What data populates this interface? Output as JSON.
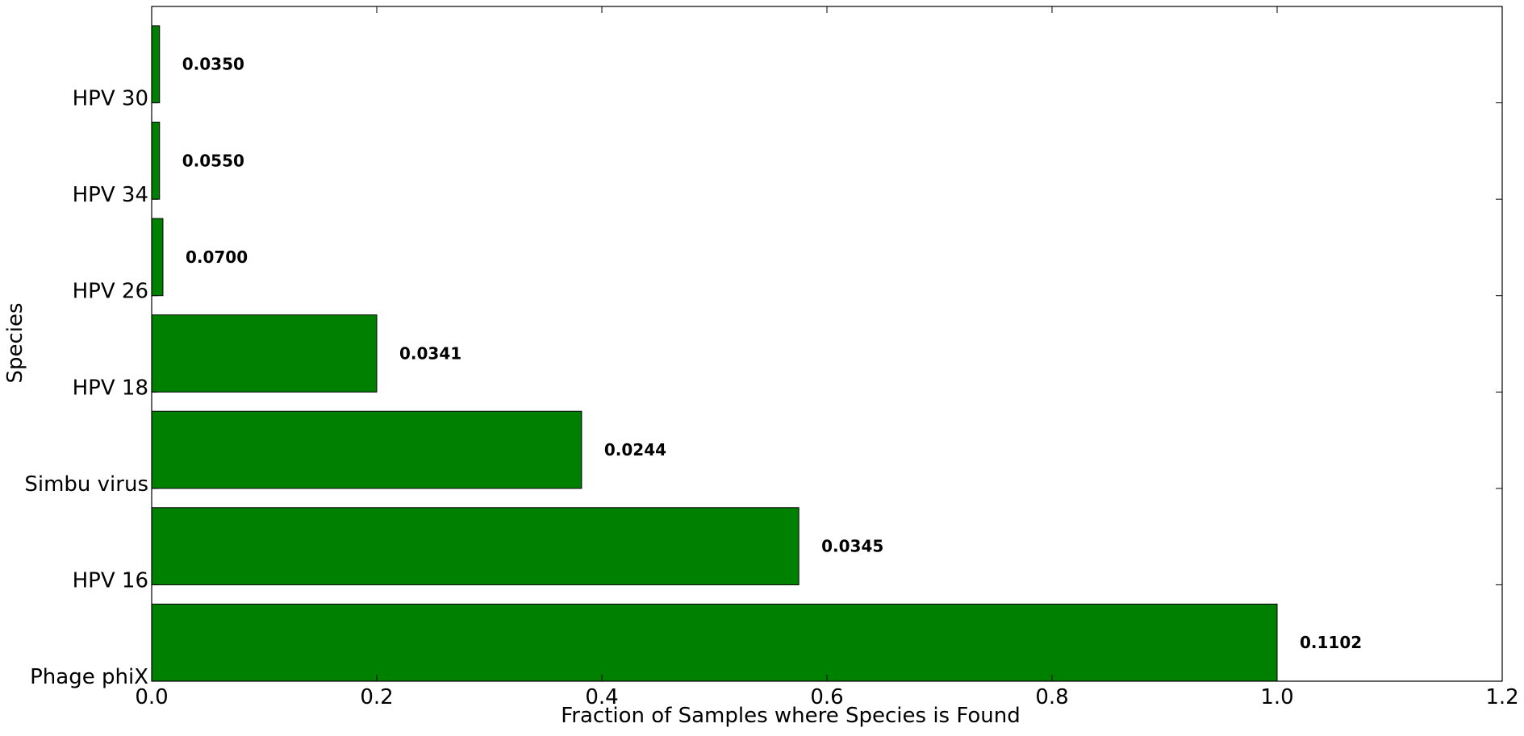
{
  "chart_data": {
    "type": "bar",
    "orientation": "horizontal",
    "title": "",
    "xlabel": "Fraction of Samples where Species is Found",
    "ylabel": "Species",
    "xlim": [
      0,
      1.2
    ],
    "xticks": [
      0.0,
      0.2,
      0.4,
      0.6,
      0.8,
      1.0,
      1.2
    ],
    "xtick_labels": [
      "0.0",
      "0.2",
      "0.4",
      "0.6",
      "0.8",
      "1.0",
      "1.2"
    ],
    "categories": [
      "Phage phiX",
      "HPV 16",
      "Simbu virus",
      "HPV 18",
      "HPV 26",
      "HPV 34",
      "HPV 30"
    ],
    "values": [
      1.0,
      0.575,
      0.382,
      0.2,
      0.01,
      0.007,
      0.007
    ],
    "bar_labels": [
      "0.1102",
      "0.0345",
      "0.0244",
      "0.0341",
      "0.0700",
      "0.0550",
      "0.0350"
    ],
    "bar_color": "#008000",
    "grid": false,
    "legend": "none"
  }
}
